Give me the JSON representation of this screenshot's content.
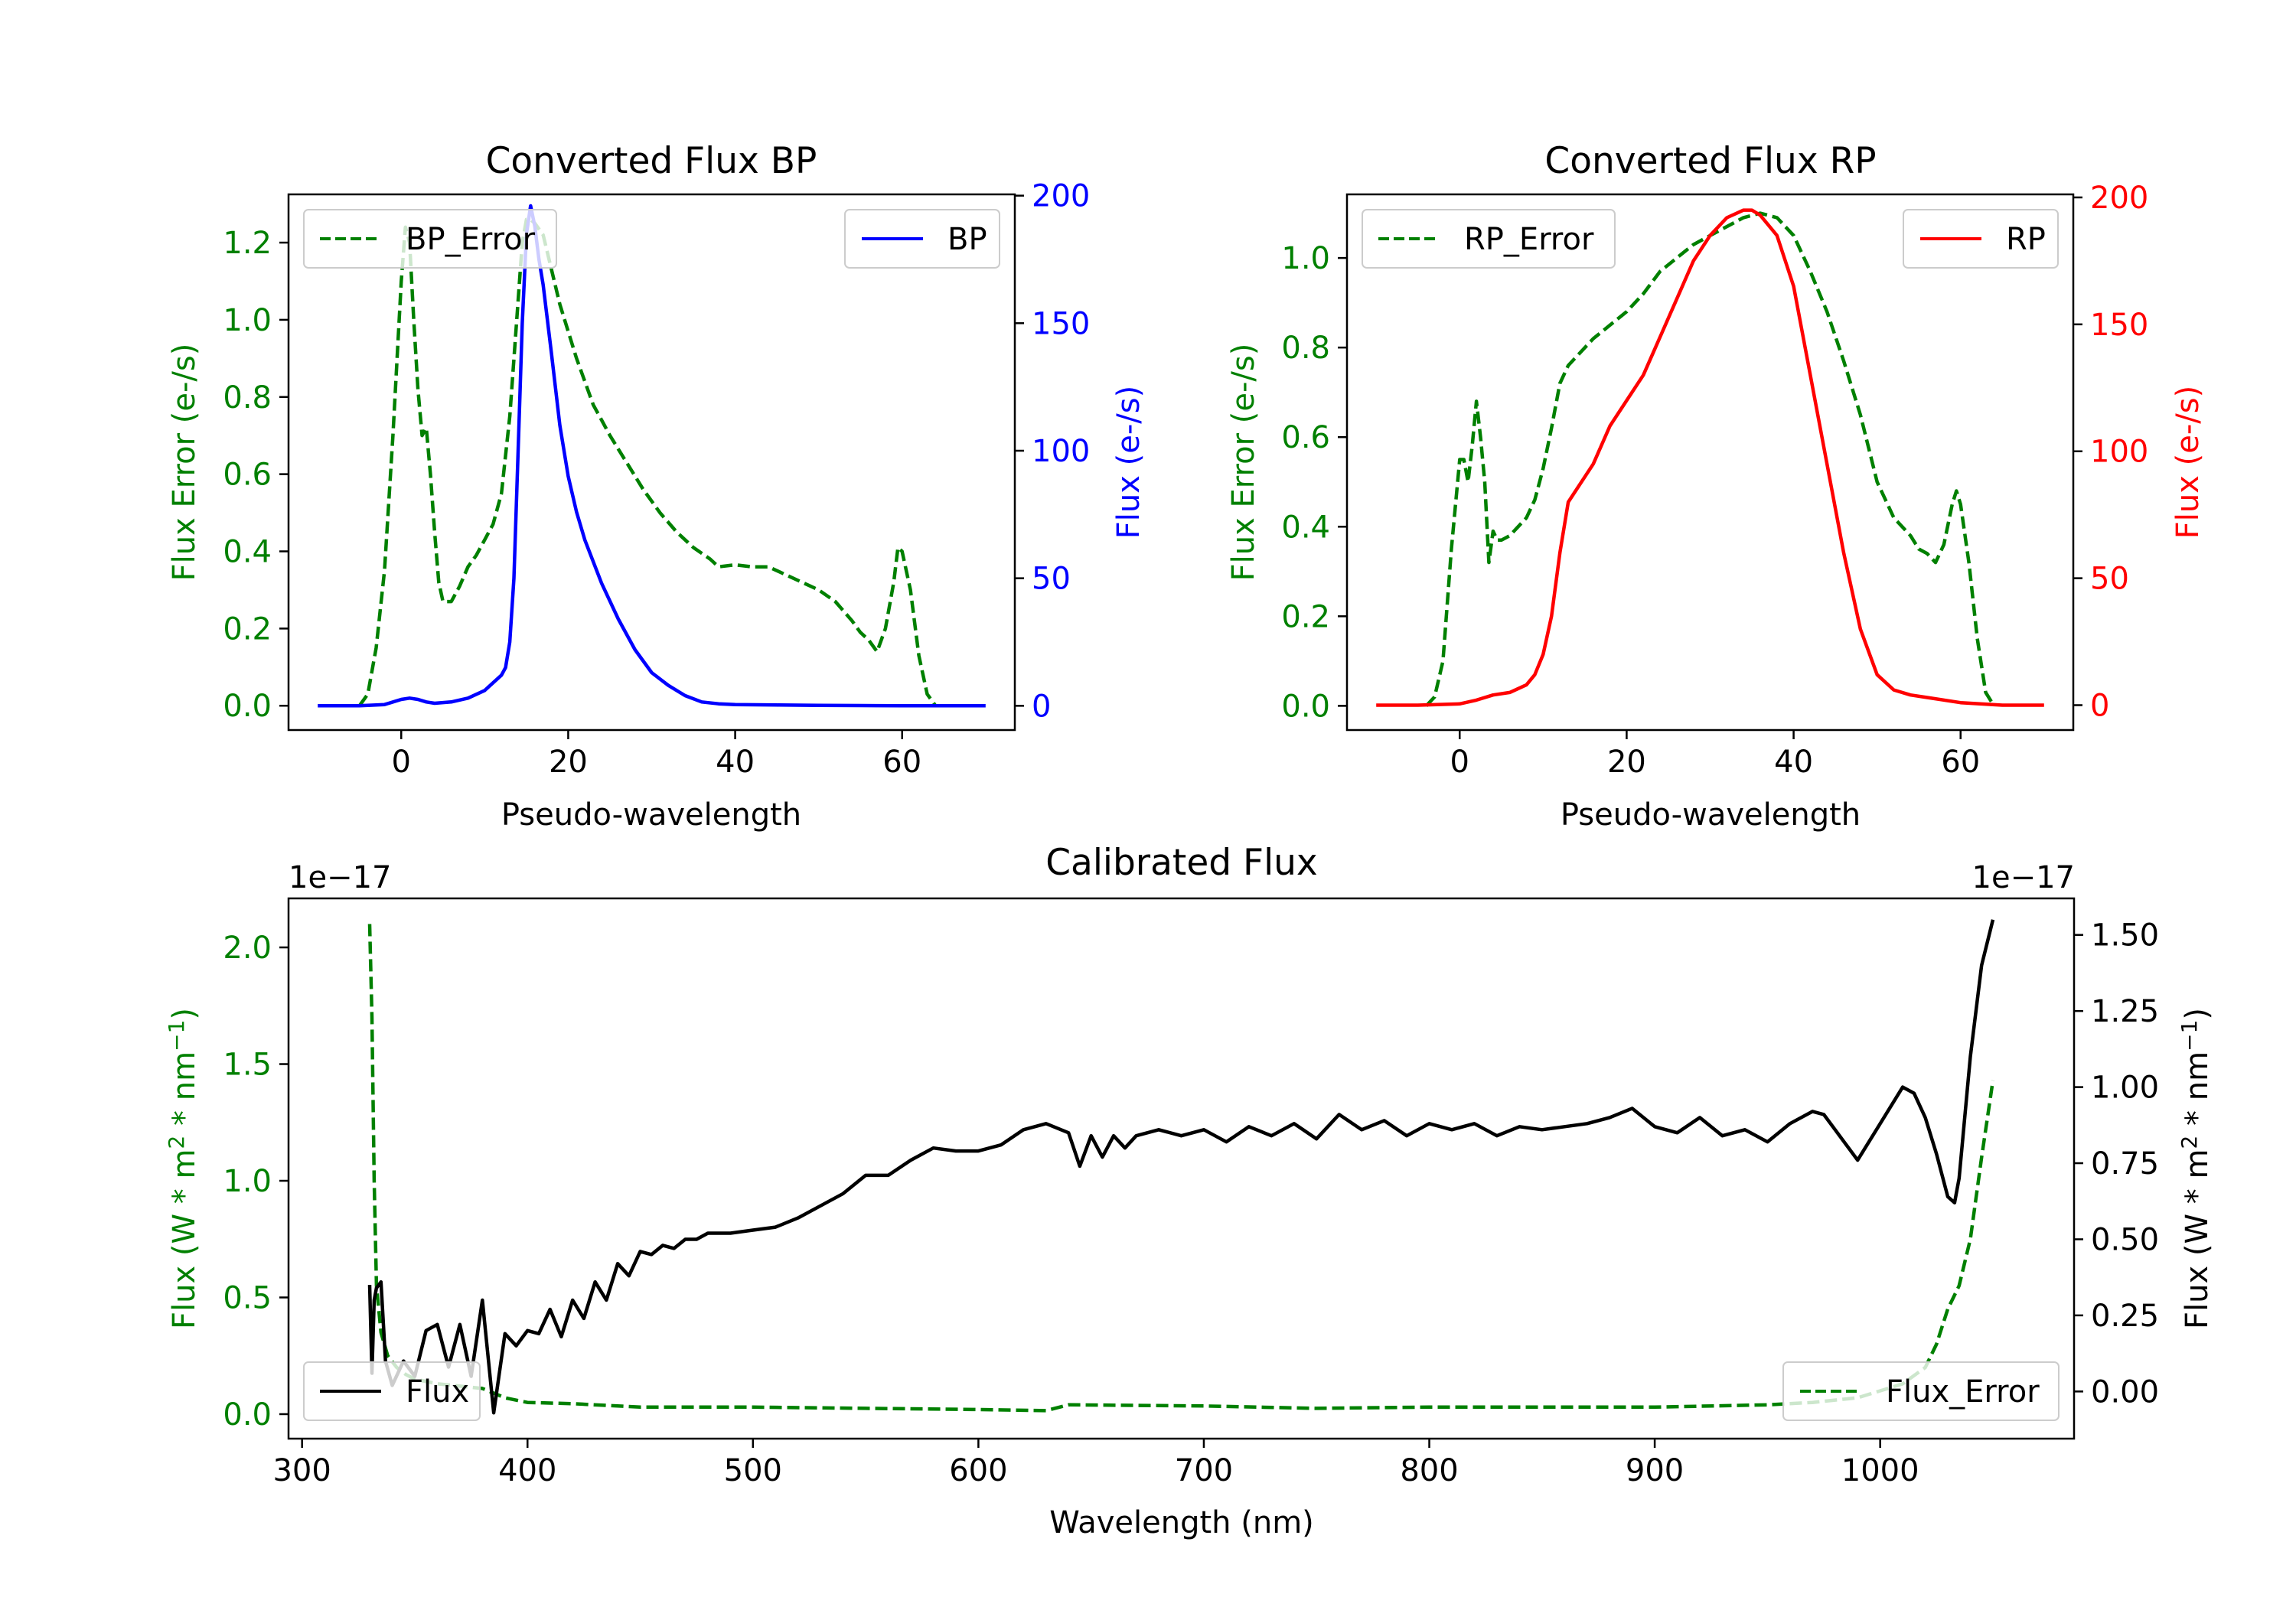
{
  "colors": {
    "bp": "#0000ff",
    "rp": "#ff0000",
    "error": "#008000",
    "flux": "#000000",
    "axis": "#000000"
  },
  "chart_data": [
    {
      "id": "bp",
      "type": "line",
      "title": "Converted Flux BP",
      "xlabel": "Pseudo-wavelength",
      "ylabel_left": "Flux Error (e-/s)",
      "ylabel_right": "Flux (e-/s)",
      "xlim": [
        -13.5,
        73.5
      ],
      "ylim_left": [
        -0.063,
        1.325
      ],
      "ylim_right": [
        -9.5,
        200.5
      ],
      "xticks": [
        0,
        20,
        40,
        60
      ],
      "yticks_left": [
        "0.0",
        "0.2",
        "0.4",
        "0.6",
        "0.8",
        "1.0",
        "1.2"
      ],
      "yticks_right": [
        0,
        50,
        100,
        150,
        200
      ],
      "legend_left": "BP_Error",
      "legend_right": "BP",
      "series": [
        {
          "name": "BP_Error",
          "axis": "left",
          "style": "dashed",
          "color": "#008000",
          "x": [
            -5,
            -4,
            -3,
            -2,
            -1,
            0,
            0.5,
            1,
            1.5,
            2,
            2.5,
            3,
            3.5,
            4,
            4.5,
            5,
            6,
            7,
            8,
            9,
            10,
            11,
            12,
            13,
            14,
            14.5,
            15,
            15.5,
            16,
            17,
            18,
            19,
            20,
            21,
            22,
            23,
            24,
            25,
            27,
            29,
            31,
            33,
            35,
            37,
            38,
            40,
            42,
            44,
            46,
            48,
            50,
            52,
            54,
            55,
            56,
            57,
            58,
            59,
            59.5,
            60,
            61,
            62,
            63,
            64,
            65
          ],
          "y": [
            0.0,
            0.03,
            0.15,
            0.35,
            0.7,
            1.1,
            1.24,
            1.2,
            1.0,
            0.82,
            0.7,
            0.72,
            0.6,
            0.45,
            0.32,
            0.27,
            0.27,
            0.31,
            0.36,
            0.39,
            0.43,
            0.47,
            0.55,
            0.75,
            1.05,
            1.2,
            1.26,
            1.26,
            1.25,
            1.22,
            1.13,
            1.04,
            0.97,
            0.9,
            0.84,
            0.78,
            0.74,
            0.7,
            0.63,
            0.56,
            0.5,
            0.45,
            0.41,
            0.38,
            0.36,
            0.365,
            0.36,
            0.36,
            0.34,
            0.32,
            0.3,
            0.27,
            0.22,
            0.19,
            0.17,
            0.14,
            0.2,
            0.32,
            0.41,
            0.4,
            0.3,
            0.13,
            0.03,
            0.0,
            0.0
          ]
        },
        {
          "name": "BP",
          "axis": "right",
          "style": "solid",
          "color": "#0000ff",
          "x": [
            -10,
            -5,
            -2,
            0,
            1,
            2,
            3,
            4,
            6,
            8,
            10,
            11,
            12,
            12.5,
            13,
            13.5,
            14,
            14.5,
            15,
            15.5,
            16,
            16.5,
            17,
            18,
            19,
            20,
            21,
            22,
            24,
            26,
            28,
            30,
            32,
            34,
            36,
            38,
            40,
            45,
            50,
            55,
            60,
            65,
            70
          ],
          "y": [
            0,
            0,
            0.5,
            2.5,
            3,
            2.5,
            1.5,
            1,
            1.5,
            3,
            6,
            9,
            12,
            15,
            25,
            50,
            100,
            150,
            185,
            196,
            188,
            175,
            165,
            138,
            110,
            90,
            76,
            65,
            48,
            34,
            22,
            13,
            8,
            4,
            1.5,
            0.8,
            0.5,
            0.3,
            0.2,
            0.1,
            0,
            0,
            0
          ]
        }
      ]
    },
    {
      "id": "rp",
      "type": "line",
      "title": "Converted Flux RP",
      "xlabel": "Pseudo-wavelength",
      "ylabel_left": "Flux Error (e-/s)",
      "ylabel_right": "Flux (e-/s)",
      "xlim": [
        -13.5,
        73.5
      ],
      "ylim_left": [
        -0.054,
        1.142
      ],
      "ylim_right": [
        -9.8,
        201.2
      ],
      "xticks": [
        0,
        20,
        40,
        60
      ],
      "yticks_left": [
        "0.0",
        "0.2",
        "0.4",
        "0.6",
        "0.8",
        "1.0"
      ],
      "yticks_right": [
        0,
        50,
        100,
        150,
        200
      ],
      "legend_left": "RP_Error",
      "legend_right": "RP",
      "series": [
        {
          "name": "RP_Error",
          "axis": "left",
          "style": "dashed",
          "color": "#008000",
          "x": [
            -4,
            -3,
            -2,
            -1,
            0,
            0.5,
            1,
            1.5,
            2,
            2.5,
            3,
            3.5,
            4,
            4.5,
            5,
            6,
            7,
            8,
            9,
            10,
            11,
            12,
            13,
            14,
            16,
            18,
            20,
            22,
            24,
            26,
            28,
            30,
            32,
            34,
            36,
            38,
            40,
            42,
            44,
            46,
            48,
            50,
            52,
            54,
            55,
            56,
            57,
            58,
            59,
            59.5,
            60,
            61,
            62,
            63,
            64
          ],
          "y": [
            0.0,
            0.02,
            0.1,
            0.35,
            0.55,
            0.55,
            0.5,
            0.58,
            0.68,
            0.6,
            0.5,
            0.32,
            0.39,
            0.37,
            0.37,
            0.38,
            0.4,
            0.42,
            0.46,
            0.53,
            0.62,
            0.72,
            0.76,
            0.78,
            0.82,
            0.85,
            0.88,
            0.92,
            0.97,
            1.0,
            1.03,
            1.05,
            1.07,
            1.09,
            1.1,
            1.09,
            1.05,
            0.97,
            0.88,
            0.77,
            0.65,
            0.5,
            0.42,
            0.38,
            0.35,
            0.34,
            0.32,
            0.36,
            0.45,
            0.48,
            0.45,
            0.32,
            0.15,
            0.03,
            0.0
          ]
        },
        {
          "name": "RP",
          "axis": "right",
          "style": "solid",
          "color": "#ff0000",
          "x": [
            -10,
            -5,
            0,
            2,
            4,
            6,
            8,
            9,
            10,
            11,
            12,
            13,
            14,
            16,
            18,
            20,
            22,
            24,
            26,
            28,
            30,
            32,
            34,
            35,
            36,
            38,
            40,
            42,
            44,
            46,
            48,
            50,
            52,
            54,
            56,
            60,
            65,
            70
          ],
          "y": [
            0,
            0,
            0.5,
            2,
            4,
            5,
            8,
            12,
            20,
            35,
            60,
            80,
            85,
            95,
            110,
            120,
            130,
            145,
            160,
            175,
            185,
            192,
            195,
            195,
            193,
            185,
            165,
            130,
            95,
            60,
            30,
            12,
            6,
            4,
            3,
            1,
            0,
            0
          ]
        }
      ]
    },
    {
      "id": "cal",
      "type": "line",
      "title": "Calibrated Flux",
      "xlabel": "Wavelength (nm)",
      "ylabel_left": "Flux (W * m",
      "ylabel_left_exp": "2",
      "ylabel_left_tail": " * nm",
      "ylabel_left_exp2": "−1",
      "ylabel_left_end": ")",
      "ylabel_right": "Flux (W * m",
      "ylabel_right_exp": "2",
      "ylabel_right_tail": " * nm",
      "ylabel_right_exp2": "−1",
      "ylabel_right_end": ")",
      "offset_left": "1e−17",
      "offset_right": "1e−17",
      "xlim": [
        294,
        1086
      ],
      "ylim_left": [
        -0.105,
        2.21
      ],
      "ylim_right": [
        -0.155,
        1.62
      ],
      "xticks": [
        300,
        400,
        500,
        600,
        700,
        800,
        900,
        1000
      ],
      "yticks_left": [
        "0.0",
        "0.5",
        "1.0",
        "1.5",
        "2.0"
      ],
      "yticks_right": [
        "0.00",
        "0.25",
        "0.50",
        "0.75",
        "1.00",
        "1.25",
        "1.50"
      ],
      "legend_left": "Flux",
      "legend_right": "Flux_Error",
      "series": [
        {
          "name": "Flux_Error",
          "axis": "left",
          "style": "dashed",
          "color": "#008000",
          "x": [
            330,
            331,
            332,
            333,
            335,
            338,
            342,
            346,
            350,
            360,
            370,
            380,
            390,
            400,
            420,
            450,
            500,
            550,
            600,
            630,
            640,
            700,
            750,
            800,
            900,
            950,
            970,
            990,
            1000,
            1010,
            1020,
            1025,
            1030,
            1035,
            1040,
            1045,
            1050
          ],
          "y": [
            2.1,
            1.7,
            1.0,
            0.55,
            0.35,
            0.25,
            0.2,
            0.17,
            0.15,
            0.13,
            0.12,
            0.11,
            0.07,
            0.05,
            0.045,
            0.03,
            0.03,
            0.025,
            0.02,
            0.015,
            0.04,
            0.035,
            0.025,
            0.03,
            0.03,
            0.04,
            0.05,
            0.07,
            0.1,
            0.13,
            0.2,
            0.3,
            0.45,
            0.55,
            0.75,
            1.1,
            1.43
          ]
        },
        {
          "name": "Flux",
          "axis": "right",
          "style": "solid",
          "color": "#000000",
          "x": [
            330,
            331,
            332,
            333,
            335,
            337,
            340,
            345,
            350,
            355,
            360,
            365,
            370,
            375,
            380,
            385,
            390,
            395,
            400,
            405,
            410,
            415,
            420,
            425,
            430,
            435,
            440,
            445,
            450,
            455,
            460,
            465,
            470,
            475,
            480,
            490,
            500,
            510,
            520,
            530,
            540,
            550,
            560,
            570,
            580,
            590,
            600,
            610,
            620,
            630,
            640,
            645,
            650,
            655,
            660,
            665,
            670,
            680,
            690,
            700,
            710,
            720,
            730,
            740,
            750,
            760,
            770,
            780,
            790,
            800,
            810,
            820,
            830,
            840,
            850,
            860,
            870,
            880,
            890,
            900,
            910,
            920,
            930,
            940,
            950,
            960,
            970,
            975,
            980,
            990,
            1000,
            1010,
            1015,
            1020,
            1025,
            1030,
            1033,
            1035,
            1040,
            1045,
            1050
          ],
          "y": [
            0.35,
            0.06,
            0.3,
            0.34,
            0.36,
            0.1,
            0.02,
            0.1,
            0.05,
            0.2,
            0.22,
            0.08,
            0.22,
            0.05,
            0.3,
            -0.07,
            0.19,
            0.15,
            0.2,
            0.19,
            0.27,
            0.18,
            0.3,
            0.24,
            0.36,
            0.3,
            0.42,
            0.38,
            0.46,
            0.45,
            0.48,
            0.47,
            0.5,
            0.5,
            0.52,
            0.52,
            0.53,
            0.54,
            0.57,
            0.61,
            0.65,
            0.71,
            0.71,
            0.76,
            0.8,
            0.79,
            0.79,
            0.81,
            0.86,
            0.88,
            0.85,
            0.74,
            0.84,
            0.77,
            0.84,
            0.8,
            0.84,
            0.86,
            0.84,
            0.86,
            0.82,
            0.87,
            0.84,
            0.88,
            0.83,
            0.91,
            0.86,
            0.89,
            0.84,
            0.88,
            0.86,
            0.88,
            0.84,
            0.87,
            0.86,
            0.87,
            0.88,
            0.9,
            0.93,
            0.87,
            0.85,
            0.9,
            0.84,
            0.86,
            0.82,
            0.88,
            0.92,
            0.91,
            0.86,
            0.76,
            0.88,
            1.0,
            0.98,
            0.9,
            0.78,
            0.64,
            0.62,
            0.7,
            1.1,
            1.4,
            1.55
          ]
        }
      ]
    }
  ]
}
